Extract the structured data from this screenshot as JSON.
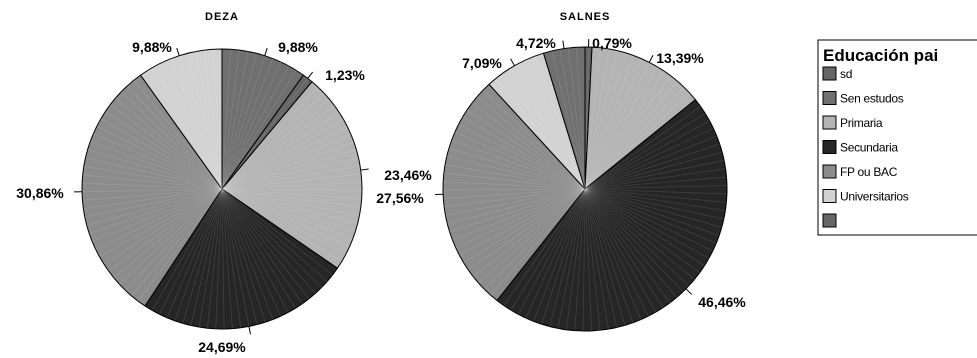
{
  "chart_data": {
    "type": "pie",
    "legend": {
      "title": "Educación pai",
      "placement": "right",
      "entries": [
        {
          "label": "sd",
          "color": "#666666"
        },
        {
          "label": "Sen estudos",
          "color": "#707070"
        },
        {
          "label": "Primaria",
          "color": "#b4b4b4"
        },
        {
          "label": "Secundaria",
          "color": "#262626"
        },
        {
          "label": "FP ou BAC",
          "color": "#8c8c8c"
        },
        {
          "label": "Universitarios",
          "color": "#d2d2d2"
        },
        {
          "label": "",
          "color": "#666666"
        }
      ]
    },
    "pies": [
      {
        "title": "DEZA",
        "slices": [
          {
            "category": "Sen estudos",
            "value": 9.88,
            "label": "9,88%"
          },
          {
            "category": "sd",
            "value": 1.23,
            "label": "1,23%"
          },
          {
            "category": "Primaria",
            "value": 23.46,
            "label": "23,46%"
          },
          {
            "category": "Secundaria",
            "value": 24.69,
            "label": "24,69%"
          },
          {
            "category": "FP ou BAC",
            "value": 30.86,
            "label": "30,86%"
          },
          {
            "category": "Universitarios",
            "value": 9.88,
            "label": "9,88%"
          }
        ]
      },
      {
        "title": "SALNES",
        "slices": [
          {
            "category": "sd",
            "value": 0.79,
            "label": "0,79%"
          },
          {
            "category": "Primaria",
            "value": 13.39,
            "label": "13,39%"
          },
          {
            "category": "Secundaria",
            "value": 46.46,
            "label": "46,46%"
          },
          {
            "category": "FP ou BAC",
            "value": 27.56,
            "label": "27,56%"
          },
          {
            "category": "Universitarios",
            "value": 7.09,
            "label": "7,09%"
          },
          {
            "category": "Sen estudos",
            "value": 4.72,
            "label": "4,72%"
          }
        ]
      }
    ]
  }
}
